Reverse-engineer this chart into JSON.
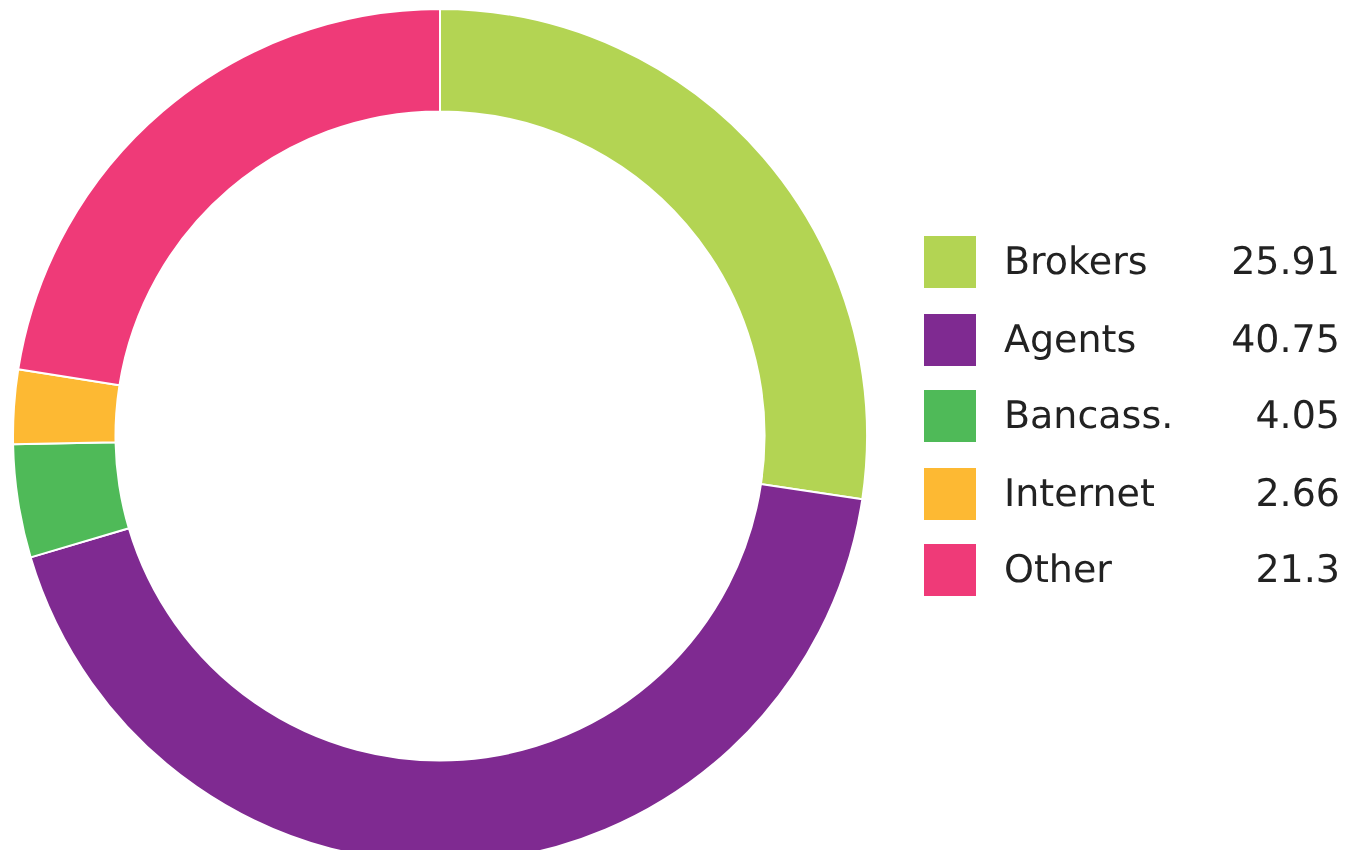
{
  "chart_data": {
    "type": "donut",
    "categories": [
      "Brokers",
      "Agents",
      "Bancass.",
      "Internet",
      "Other"
    ],
    "values": [
      25.91,
      40.75,
      4.05,
      2.66,
      21.3
    ],
    "colors": [
      "#b3d453",
      "#7f2a91",
      "#4fba58",
      "#fdb933",
      "#ef3a78"
    ],
    "legend": "right",
    "data_labels": true
  }
}
